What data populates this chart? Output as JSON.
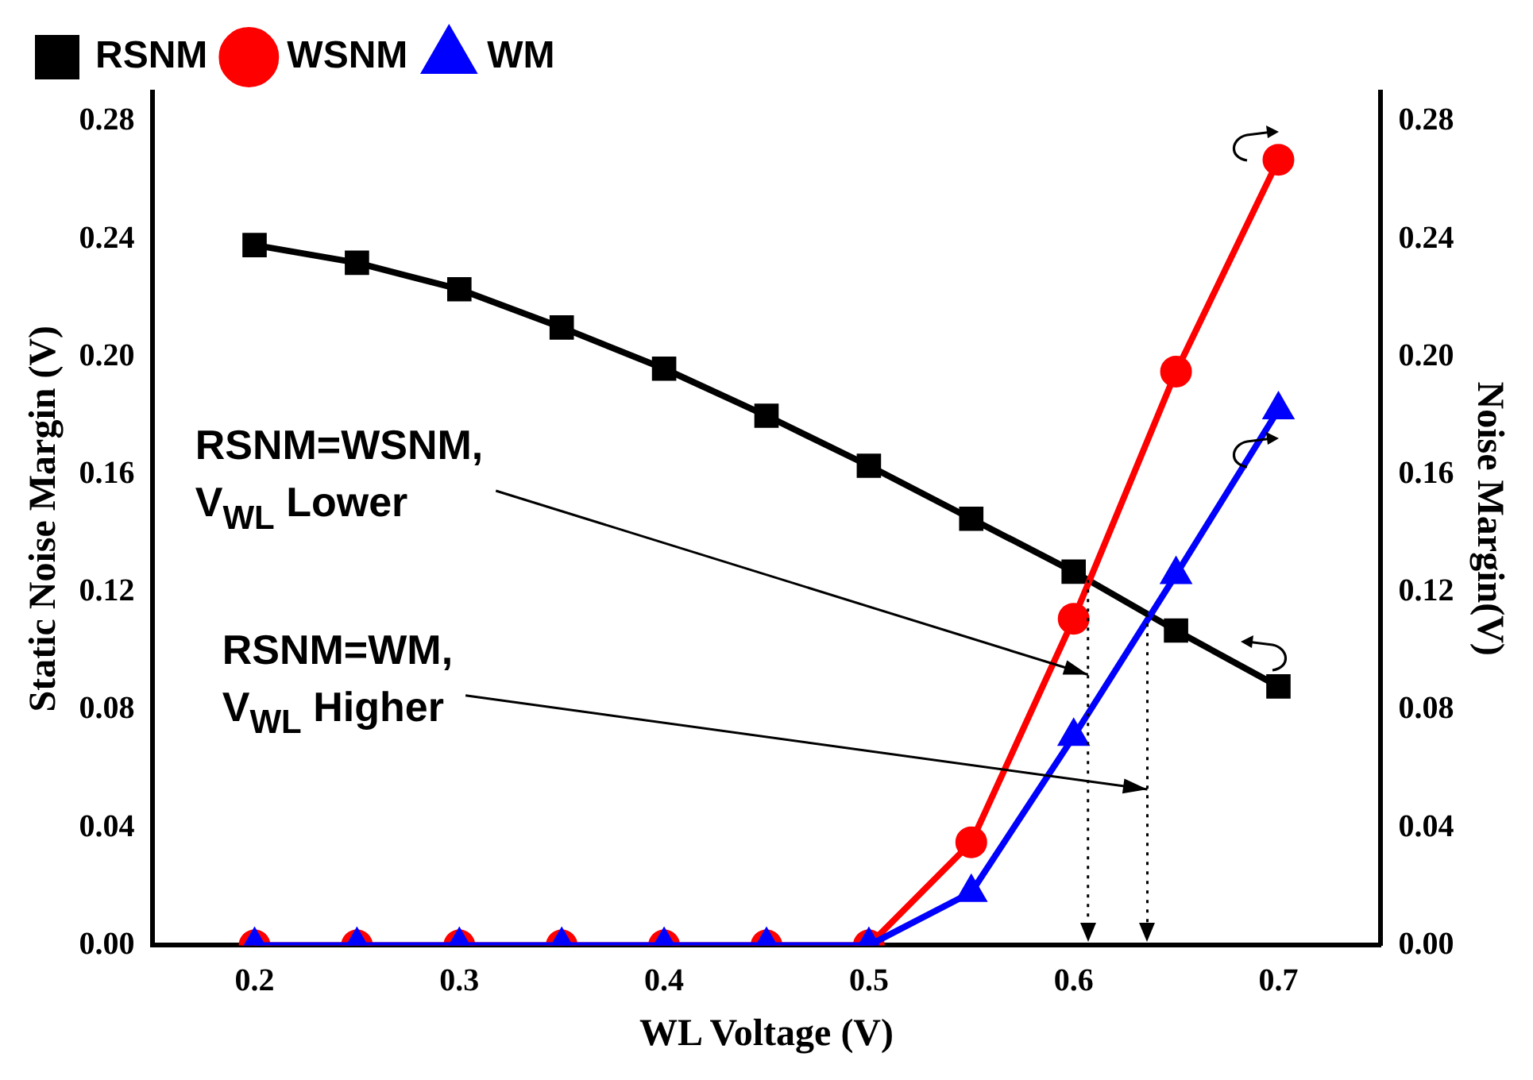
{
  "chart_data": {
    "type": "line",
    "xlabel": "WL Voltage (V)",
    "ylabel": "Static Noise Margin (V)",
    "y2label": "Noise Margin(V)",
    "x": [
      0.2,
      0.25,
      0.3,
      0.35,
      0.4,
      0.45,
      0.5,
      0.55,
      0.6,
      0.65,
      0.7
    ],
    "series": [
      {
        "name": "RSNM",
        "color": "#000000",
        "marker": "square",
        "values": [
          0.238,
          0.232,
          0.223,
          0.21,
          0.196,
          0.18,
          0.163,
          0.145,
          0.127,
          0.107,
          0.088
        ]
      },
      {
        "name": "WSNM",
        "color": "#ff0000",
        "marker": "circle",
        "axis": "y2",
        "values": [
          0,
          0,
          0,
          0,
          0,
          0,
          0,
          0.035,
          0.111,
          0.195,
          0.267
        ]
      },
      {
        "name": "WM",
        "color": "#0000ff",
        "marker": "triangle",
        "axis": "y2",
        "values": [
          0,
          0,
          0,
          0,
          0,
          0,
          0,
          0.018,
          0.071,
          0.126,
          0.182
        ]
      }
    ],
    "xlim": [
      0.15,
      0.75
    ],
    "xticks": [
      0.2,
      0.3,
      0.4,
      0.5,
      0.6,
      0.7
    ],
    "ylim": [
      0,
      0.29
    ],
    "yticks": [
      {
        "value": 0,
        "label": "0.00"
      },
      0.04,
      0.08,
      0.12,
      0.16,
      {
        "value": 0.2,
        "label": "0.20"
      },
      0.24,
      0.28
    ],
    "y2lim": [
      0,
      0.29
    ],
    "y2ticks": [
      {
        "value": 0,
        "label": "0.00"
      },
      0.04,
      0.08,
      0.12,
      0.16,
      {
        "value": 0.2,
        "label": "0.20"
      },
      0.24,
      0.28
    ],
    "ref_lines": [
      {
        "axis": "x",
        "value": 0.607,
        "line_style": "dotted",
        "color": "#000000"
      },
      {
        "axis": "x",
        "value": 0.636,
        "line_style": "dotted",
        "color": "#000000"
      }
    ],
    "annotations": [
      {
        "text": "RSNM=WSNM,\nV$_{WL}$ Lower",
        "x": 0.607,
        "y": 0.092
      },
      {
        "text": "RSNM=WM,\nV$_{WL}$ Higher",
        "x": 0.636,
        "y": 0.053
      }
    ],
    "legend": "top left",
    "grid": false,
    "line_style": "solid"
  }
}
